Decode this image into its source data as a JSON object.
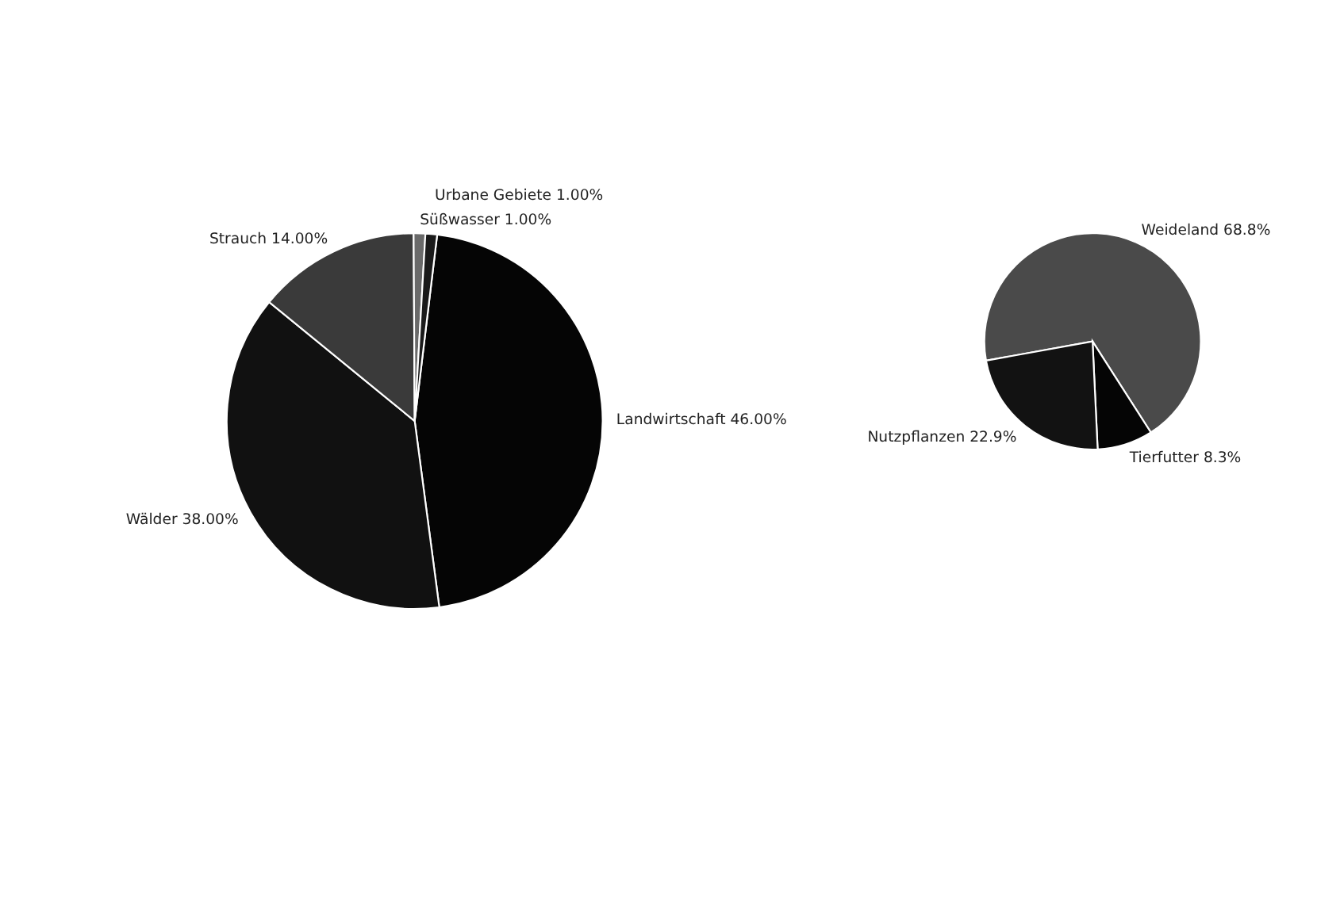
{
  "chart_data": [
    {
      "type": "pie",
      "categories": [
        "Landwirtschaft",
        "Wälder",
        "Strauch",
        "Süßwasser",
        "Urbane Gebiete"
      ],
      "values": [
        46,
        38,
        14,
        1,
        1
      ],
      "colors": [
        "#050505",
        "#111111",
        "#3a3a3a",
        "#6a6a6a",
        "#1a1a1a"
      ],
      "value_labels": [
        "46.00%",
        "38.00%",
        "14.00%",
        "1.00%",
        "1.00%"
      ],
      "legend": false
    },
    {
      "type": "pie",
      "categories": [
        "Weideland",
        "Tierfutter",
        "Nutzpflanzen"
      ],
      "values": [
        68.8,
        8.3,
        22.9
      ],
      "colors": [
        "#4a4a4a",
        "#050505",
        "#121212"
      ],
      "value_labels": [
        "68.8%",
        "8.3%",
        "22.9%"
      ],
      "legend": false
    }
  ]
}
